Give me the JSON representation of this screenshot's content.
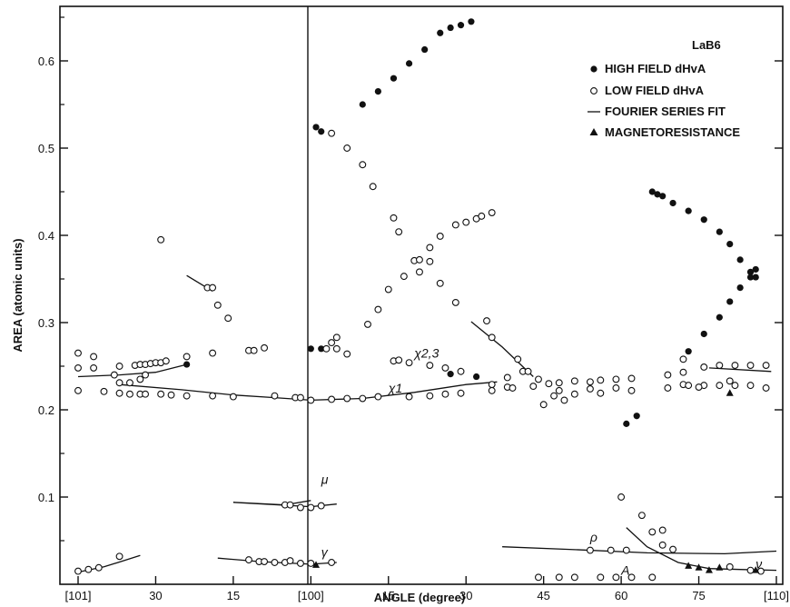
{
  "chart_data": {
    "type": "scatter",
    "title": "LaB6",
    "xlabel": "ANGLE (degree)",
    "ylabel": "AREA (atomic units)",
    "ylim": [
      0,
      0.66
    ],
    "x_ticks": [
      {
        "x": 0,
        "label": "[101]"
      },
      {
        "x": 15,
        "label": "30"
      },
      {
        "x": 30,
        "label": "15"
      },
      {
        "x": 45,
        "label": "[100]"
      },
      {
        "x": 60,
        "label": "15"
      },
      {
        "x": 75,
        "label": "30"
      },
      {
        "x": 90,
        "label": "45"
      },
      {
        "x": 105,
        "label": "60"
      },
      {
        "x": 120,
        "label": "75"
      },
      {
        "x": 135,
        "label": "[110]"
      }
    ],
    "y_ticks": [
      0.1,
      0.2,
      0.3,
      0.4,
      0.5,
      0.6
    ],
    "y_tick_labels": [
      "0.1",
      "0.2",
      "0.3",
      "0.4",
      "0.5",
      "0.6"
    ],
    "grid": false,
    "legend_position": "top-right",
    "legend": [
      {
        "marker": "filled-circle",
        "label": "HIGH FIELD dHvA"
      },
      {
        "marker": "open-circle",
        "label": "LOW FIELD dHvA"
      },
      {
        "marker": "line",
        "label": "FOURIER SERIES FIT"
      },
      {
        "marker": "triangle",
        "label": "MAGNETORESISTANCE"
      }
    ],
    "annotations": [
      {
        "text": "χ1",
        "x": 60,
        "y": 0.22
      },
      {
        "text": "χ2,3",
        "x": 65,
        "y": 0.26
      },
      {
        "text": "μ",
        "x": 47,
        "y": 0.115
      },
      {
        "text": "γ",
        "x": 47,
        "y": 0.032
      },
      {
        "text": "ρ",
        "x": 99,
        "y": 0.049
      },
      {
        "text": "A",
        "x": 105,
        "y": 0.011
      },
      {
        "text": "ν",
        "x": 131,
        "y": 0.018
      }
    ],
    "series": [
      {
        "name": "HIGH FIELD dHvA",
        "marker": "filled-circle",
        "points": [
          [
            21,
            0.252
          ],
          [
            45,
            0.27
          ],
          [
            46,
            0.524
          ],
          [
            47,
            0.27
          ],
          [
            47,
            0.519
          ],
          [
            55,
            0.55
          ],
          [
            58,
            0.565
          ],
          [
            61,
            0.58
          ],
          [
            64,
            0.597
          ],
          [
            67,
            0.613
          ],
          [
            70,
            0.632
          ],
          [
            72,
            0.638
          ],
          [
            74,
            0.641
          ],
          [
            76,
            0.645
          ],
          [
            72,
            0.241
          ],
          [
            77,
            0.238
          ],
          [
            106,
            0.184
          ],
          [
            108,
            0.193
          ],
          [
            111,
            0.45
          ],
          [
            112,
            0.447
          ],
          [
            113,
            0.445
          ],
          [
            115,
            0.437
          ],
          [
            118,
            0.428
          ],
          [
            121,
            0.418
          ],
          [
            124,
            0.404
          ],
          [
            126,
            0.39
          ],
          [
            128,
            0.372
          ],
          [
            130,
            0.358
          ],
          [
            131,
            0.352
          ],
          [
            131,
            0.361
          ],
          [
            118,
            0.267
          ],
          [
            121,
            0.287
          ],
          [
            124,
            0.306
          ],
          [
            126,
            0.324
          ],
          [
            128,
            0.34
          ],
          [
            130,
            0.352
          ]
        ]
      },
      {
        "name": "LOW FIELD dHvA",
        "marker": "open-circle",
        "points": [
          [
            0,
            0.265
          ],
          [
            0,
            0.248
          ],
          [
            0,
            0.222
          ],
          [
            3,
            0.261
          ],
          [
            3,
            0.248
          ],
          [
            5,
            0.221
          ],
          [
            7,
            0.24
          ],
          [
            8,
            0.25
          ],
          [
            8,
            0.231
          ],
          [
            8,
            0.219
          ],
          [
            10,
            0.231
          ],
          [
            10,
            0.218
          ],
          [
            11,
            0.251
          ],
          [
            12,
            0.252
          ],
          [
            12,
            0.235
          ],
          [
            12,
            0.218
          ],
          [
            13,
            0.252
          ],
          [
            13,
            0.24
          ],
          [
            13,
            0.218
          ],
          [
            14,
            0.253
          ],
          [
            15,
            0.254
          ],
          [
            16,
            0.254
          ],
          [
            16,
            0.218
          ],
          [
            17,
            0.256
          ],
          [
            18,
            0.217
          ],
          [
            21,
            0.261
          ],
          [
            21,
            0.216
          ],
          [
            16,
            0.395
          ],
          [
            25,
            0.34
          ],
          [
            27,
            0.32
          ],
          [
            29,
            0.305
          ],
          [
            26,
            0.265
          ],
          [
            26,
            0.216
          ],
          [
            30,
            0.215
          ],
          [
            33,
            0.268
          ],
          [
            34,
            0.268
          ],
          [
            36,
            0.271
          ],
          [
            38,
            0.216
          ],
          [
            42,
            0.214
          ],
          [
            43,
            0.214
          ],
          [
            45,
            0.211
          ],
          [
            49,
            0.517
          ],
          [
            52,
            0.5
          ],
          [
            55,
            0.481
          ],
          [
            57,
            0.456
          ],
          [
            48,
            0.27
          ],
          [
            49,
            0.277
          ],
          [
            50,
            0.283
          ],
          [
            50,
            0.27
          ],
          [
            49,
            0.212
          ],
          [
            52,
            0.213
          ],
          [
            52,
            0.264
          ],
          [
            55,
            0.213
          ],
          [
            56,
            0.298
          ],
          [
            58,
            0.315
          ],
          [
            58,
            0.215
          ],
          [
            60,
            0.338
          ],
          [
            61,
            0.42
          ],
          [
            62,
            0.404
          ],
          [
            63,
            0.353
          ],
          [
            64,
            0.215
          ],
          [
            61,
            0.256
          ],
          [
            62,
            0.257
          ],
          [
            64,
            0.254
          ],
          [
            65,
            0.371
          ],
          [
            66,
            0.372
          ],
          [
            66,
            0.358
          ],
          [
            68,
            0.386
          ],
          [
            68,
            0.37
          ],
          [
            68,
            0.251
          ],
          [
            68,
            0.216
          ],
          [
            70,
            0.399
          ],
          [
            70,
            0.345
          ],
          [
            71,
            0.248
          ],
          [
            71,
            0.218
          ],
          [
            73,
            0.412
          ],
          [
            73,
            0.323
          ],
          [
            74,
            0.244
          ],
          [
            74,
            0.219
          ],
          [
            75,
            0.415
          ],
          [
            77,
            0.419
          ],
          [
            78,
            0.422
          ],
          [
            80,
            0.426
          ],
          [
            79,
            0.302
          ],
          [
            80,
            0.283
          ],
          [
            80,
            0.229
          ],
          [
            80,
            0.222
          ],
          [
            83,
            0.237
          ],
          [
            83,
            0.226
          ],
          [
            84,
            0.225
          ],
          [
            85,
            0.258
          ],
          [
            86,
            0.244
          ],
          [
            87,
            0.244
          ],
          [
            88,
            0.227
          ],
          [
            89,
            0.235
          ],
          [
            90,
            0.206
          ],
          [
            91,
            0.23
          ],
          [
            92,
            0.216
          ],
          [
            93,
            0.231
          ],
          [
            93,
            0.222
          ],
          [
            94,
            0.211
          ],
          [
            96,
            0.233
          ],
          [
            96,
            0.218
          ],
          [
            99,
            0.232
          ],
          [
            99,
            0.224
          ],
          [
            101,
            0.234
          ],
          [
            101,
            0.219
          ],
          [
            104,
            0.235
          ],
          [
            104,
            0.225
          ],
          [
            105,
            0.1
          ],
          [
            109,
            0.079
          ],
          [
            111,
            0.06
          ],
          [
            113,
            0.045
          ],
          [
            115,
            0.04
          ],
          [
            113,
            0.062
          ],
          [
            114,
            0.24
          ],
          [
            114,
            0.225
          ],
          [
            117,
            0.258
          ],
          [
            117,
            0.243
          ],
          [
            117,
            0.229
          ],
          [
            118,
            0.228
          ],
          [
            121,
            0.249
          ],
          [
            121,
            0.228
          ],
          [
            124,
            0.251
          ],
          [
            124,
            0.228
          ],
          [
            127,
            0.251
          ],
          [
            127,
            0.228
          ],
          [
            130,
            0.251
          ],
          [
            130,
            0.228
          ],
          [
            133,
            0.251
          ],
          [
            133,
            0.225
          ],
          [
            120,
            0.226
          ],
          [
            126,
            0.233
          ],
          [
            107,
            0.236
          ],
          [
            107,
            0.222
          ],
          [
            0,
            0.015
          ],
          [
            2,
            0.017
          ],
          [
            4,
            0.019
          ],
          [
            8,
            0.032
          ],
          [
            33,
            0.028
          ],
          [
            35,
            0.026
          ],
          [
            36,
            0.026
          ],
          [
            38,
            0.025
          ],
          [
            40,
            0.025
          ],
          [
            41,
            0.027
          ],
          [
            43,
            0.024
          ],
          [
            45,
            0.024
          ],
          [
            49,
            0.025
          ],
          [
            40,
            0.091
          ],
          [
            41,
            0.091
          ],
          [
            43,
            0.088
          ],
          [
            45,
            0.088
          ],
          [
            47,
            0.09
          ],
          [
            26,
            0.34
          ],
          [
            89,
            0.008
          ],
          [
            93,
            0.008
          ],
          [
            96,
            0.008
          ],
          [
            99,
            0.039
          ],
          [
            101,
            0.008
          ],
          [
            103,
            0.039
          ],
          [
            104,
            0.008
          ],
          [
            106,
            0.039
          ],
          [
            107,
            0.008
          ],
          [
            111,
            0.008
          ],
          [
            126,
            0.02
          ],
          [
            130,
            0.016
          ],
          [
            132,
            0.015
          ]
        ]
      },
      {
        "name": "MAGNETORESISTANCE",
        "marker": "triangle",
        "points": [
          [
            46,
            0.022
          ],
          [
            118,
            0.021
          ],
          [
            120,
            0.019
          ],
          [
            122,
            0.016
          ],
          [
            124,
            0.019
          ],
          [
            126,
            0.219
          ],
          [
            131,
            0.016
          ]
        ]
      }
    ],
    "fits": [
      {
        "points": [
          [
            0,
            0.238
          ],
          [
            8,
            0.24
          ],
          [
            15,
            0.243
          ],
          [
            21,
            0.252
          ]
        ]
      },
      {
        "points": [
          [
            8,
            0.229
          ],
          [
            20,
            0.223
          ],
          [
            30,
            0.217
          ],
          [
            38,
            0.214
          ],
          [
            45,
            0.211
          ],
          [
            55,
            0.213
          ],
          [
            65,
            0.22
          ],
          [
            75,
            0.229
          ],
          [
            81,
            0.232
          ]
        ]
      },
      {
        "points": [
          [
            21,
            0.354
          ],
          [
            26,
            0.336
          ]
        ]
      },
      {
        "points": [
          [
            76,
            0.301
          ],
          [
            82,
            0.272
          ],
          [
            88,
            0.238
          ]
        ]
      },
      {
        "points": [
          [
            45,
            0.096
          ],
          [
            40,
            0.091
          ],
          [
            30,
            0.094
          ],
          [
            45,
            0.089
          ],
          [
            50,
            0.092
          ]
        ]
      },
      {
        "points": [
          [
            0,
            0.014
          ],
          [
            5,
            0.02
          ],
          [
            12,
            0.033
          ]
        ]
      },
      {
        "points": [
          [
            27,
            0.03
          ],
          [
            35,
            0.026
          ],
          [
            45,
            0.023
          ],
          [
            50,
            0.025
          ]
        ]
      },
      {
        "points": [
          [
            82,
            0.043
          ],
          [
            95,
            0.04
          ],
          [
            110,
            0.036
          ],
          [
            125,
            0.035
          ],
          [
            135,
            0.038
          ]
        ]
      },
      {
        "points": [
          [
            106,
            0.065
          ],
          [
            110,
            0.043
          ],
          [
            116,
            0.025
          ],
          [
            122,
            0.018
          ],
          [
            128,
            0.017
          ],
          [
            135,
            0.016
          ]
        ]
      },
      {
        "points": [
          [
            122,
            0.248
          ],
          [
            134,
            0.244
          ]
        ]
      }
    ]
  }
}
